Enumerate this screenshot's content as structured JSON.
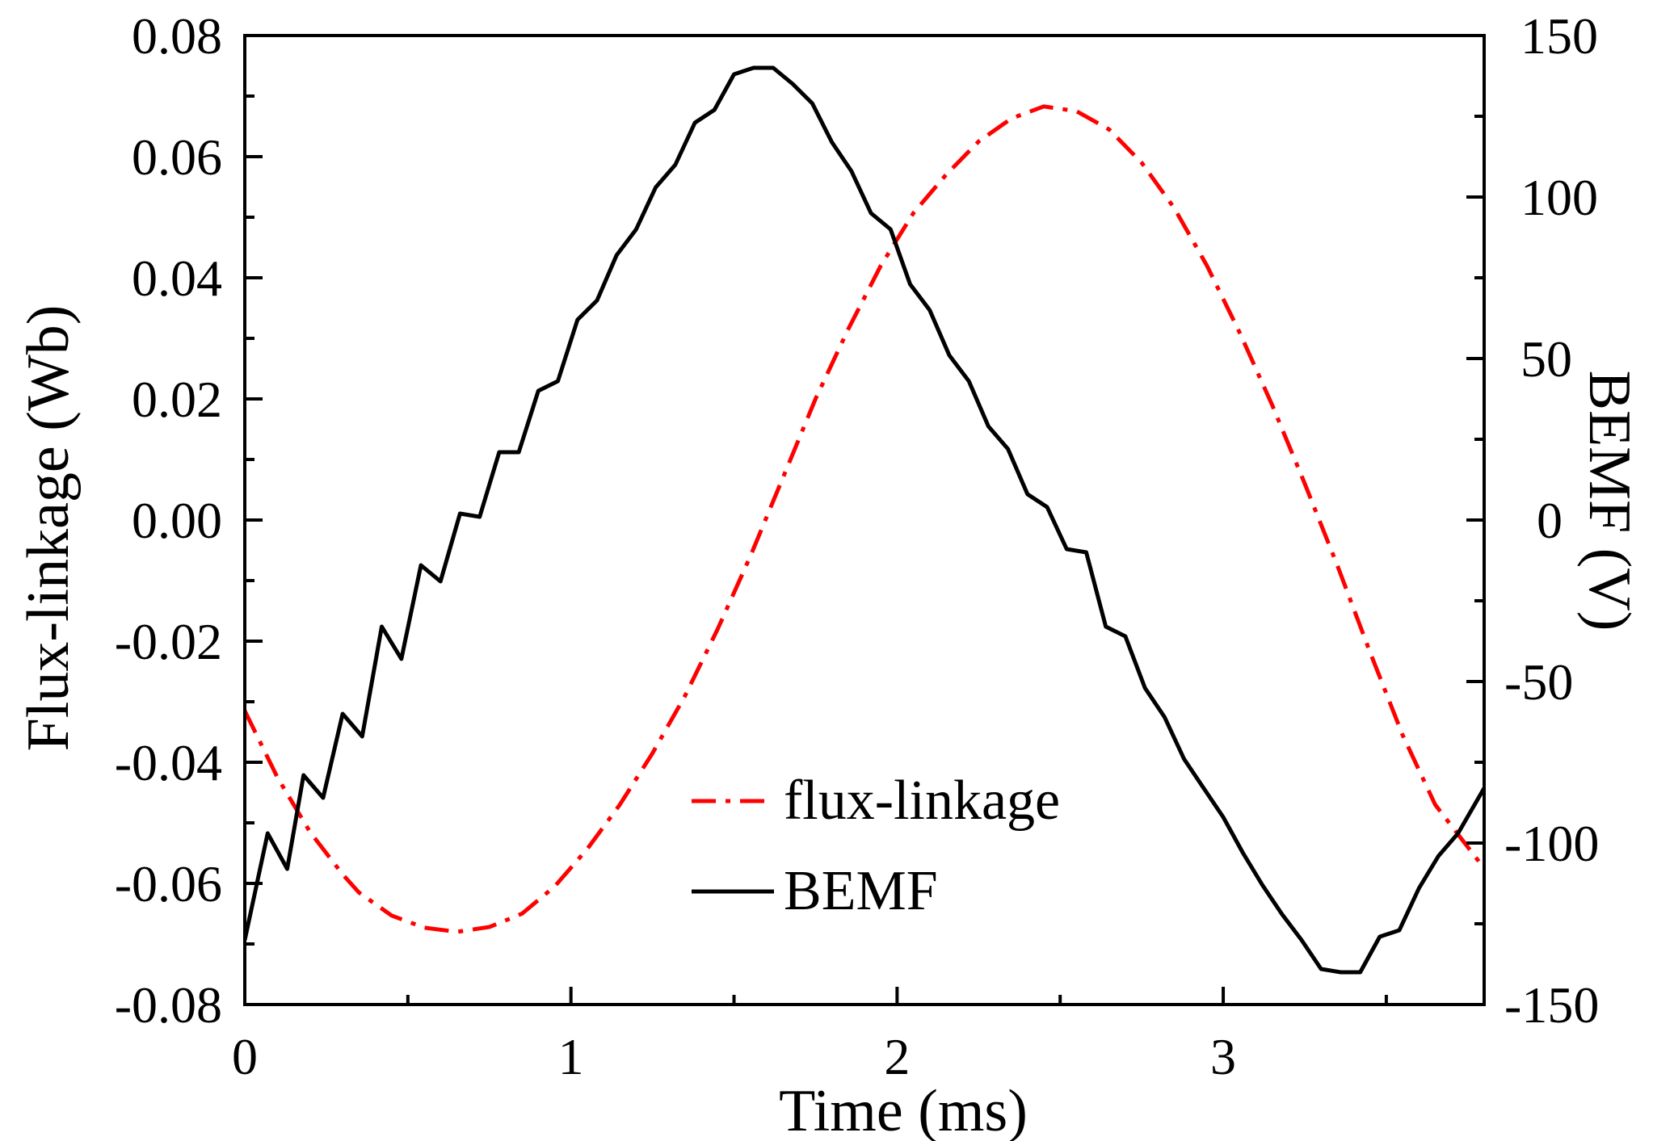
{
  "chart_data": {
    "type": "line",
    "title": "",
    "xlabel": "Time (ms)",
    "ylabel_left": "Flux-linkage (Wb)",
    "ylabel_right": "BEMF (V)",
    "xlim": [
      0,
      3.8
    ],
    "ylim_left": [
      -0.08,
      0.08
    ],
    "ylim_right": [
      -150,
      150
    ],
    "x_ticks": [
      0,
      1,
      2,
      3
    ],
    "x_tick_labels": [
      "0",
      "1",
      "2",
      "3"
    ],
    "y_left_ticks": [
      -0.08,
      -0.06,
      -0.04,
      -0.02,
      0.0,
      0.02,
      0.04,
      0.06,
      0.08
    ],
    "y_left_tick_labels": [
      "-0.08",
      "-0.06",
      "-0.04",
      "-0.02",
      "0.00",
      "0.02",
      "0.04",
      "0.06",
      "0.08"
    ],
    "y_right_ticks": [
      -150,
      -100,
      -50,
      0,
      50,
      100,
      150
    ],
    "y_right_tick_labels": [
      "-150",
      "-100",
      "-50",
      "0",
      "50",
      "100",
      "150"
    ],
    "grid": false,
    "legend_position": "bottom-center",
    "series": [
      {
        "name": "flux-linkage",
        "axis": "left",
        "color": "#ff0000",
        "dash": "dash-dot",
        "x": [
          0,
          0.1,
          0.2,
          0.3,
          0.35,
          0.45,
          0.55,
          0.65,
          0.75,
          0.85,
          0.95,
          1.05,
          1.15,
          1.25,
          1.35,
          1.45,
          1.55,
          1.65,
          1.75,
          1.85,
          1.95,
          2.05,
          2.15,
          2.25,
          2.35,
          2.45,
          2.55,
          2.65,
          2.75,
          2.85,
          2.95,
          3.05,
          3.15,
          3.25,
          3.35,
          3.45,
          3.55,
          3.65,
          3.8
        ],
        "values": [
          -0.0315,
          -0.0425,
          -0.0515,
          -0.0585,
          -0.0615,
          -0.0653,
          -0.0673,
          -0.068,
          -0.0672,
          -0.065,
          -0.0605,
          -0.0543,
          -0.047,
          -0.0385,
          -0.029,
          -0.018,
          -0.006,
          0.007,
          0.02,
          0.0315,
          0.042,
          0.0507,
          0.057,
          0.0625,
          0.0663,
          0.0683,
          0.0675,
          0.0645,
          0.059,
          0.0515,
          0.042,
          0.031,
          0.019,
          0.006,
          -0.0075,
          -0.0218,
          -0.0355,
          -0.047,
          -0.0575
        ]
      },
      {
        "name": "BEMF",
        "axis": "right",
        "color": "#000000",
        "dash": "solid",
        "x": [
          0,
          0.07,
          0.13,
          0.18,
          0.24,
          0.3,
          0.36,
          0.42,
          0.48,
          0.54,
          0.6,
          0.66,
          0.72,
          0.78,
          0.84,
          0.9,
          0.96,
          1.02,
          1.08,
          1.14,
          1.2,
          1.26,
          1.32,
          1.38,
          1.44,
          1.5,
          1.56,
          1.62,
          1.68,
          1.74,
          1.8,
          1.86,
          1.92,
          1.98,
          2.04,
          2.1,
          2.16,
          2.22,
          2.28,
          2.34,
          2.4,
          2.46,
          2.52,
          2.58,
          2.64,
          2.7,
          2.76,
          2.82,
          2.88,
          2.94,
          3.0,
          3.06,
          3.12,
          3.18,
          3.24,
          3.3,
          3.36,
          3.42,
          3.48,
          3.54,
          3.6,
          3.66,
          3.72,
          3.8
        ],
        "values": [
          -130,
          -97,
          -108,
          -79,
          -86,
          -60,
          -67,
          -33,
          -43,
          -14,
          -19,
          2,
          1,
          21,
          21,
          40,
          43,
          62,
          68,
          82,
          90,
          103,
          110,
          123,
          127,
          138,
          140,
          140,
          135,
          129,
          117,
          108,
          95,
          90,
          73,
          65,
          51,
          43,
          29,
          22,
          8,
          4,
          -9,
          -10,
          -33,
          -36,
          -52,
          -61,
          -74,
          -83,
          -92,
          -103,
          -113,
          -122,
          -130,
          -139,
          -140,
          -140,
          -129,
          -127,
          -114,
          -104,
          -97,
          -83
        ]
      }
    ]
  }
}
